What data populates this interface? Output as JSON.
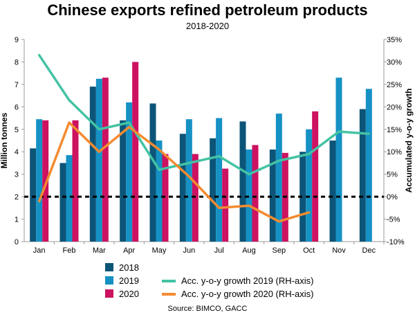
{
  "colors": {
    "bar_2018": "#0d5578",
    "bar_2019": "#1591c4",
    "bar_2020": "#cc1260",
    "line_2019": "#43c3a3",
    "line_2020": "#f38b31",
    "zero_line": "#000000",
    "axis": "#999999"
  },
  "chart_data": {
    "type": "bar",
    "title": "Chinese exports refined petroleum products",
    "subtitle": "2018-2020",
    "ylabel": "Million tonnes",
    "ylabel_right": "Accumulated y-o-y growth",
    "source": "Source: BIMCO, GACC",
    "categories": [
      "Jan",
      "Feb",
      "Mar",
      "Apr",
      "May",
      "Jun",
      "Jul",
      "Aug",
      "Sep",
      "Oct",
      "Nov",
      "Dec"
    ],
    "ylim": [
      0,
      9
    ],
    "yticks": [
      "0",
      "1",
      "2",
      "3",
      "4",
      "5",
      "6",
      "7",
      "8",
      "9"
    ],
    "y2lim": [
      -10,
      35
    ],
    "y2ticks": [
      "-10%",
      "-5%",
      "0%",
      "5%",
      "10%",
      "15%",
      "20%",
      "25%",
      "30%",
      "35%"
    ],
    "series": [
      {
        "name": "2018",
        "kind": "bar",
        "values": [
          4.15,
          3.5,
          6.9,
          5.4,
          6.15,
          4.8,
          4.6,
          5.35,
          4.1,
          4.0,
          4.5,
          5.9
        ]
      },
      {
        "name": "2019",
        "kind": "bar",
        "values": [
          5.45,
          3.85,
          7.25,
          6.2,
          4.5,
          5.45,
          5.5,
          4.1,
          5.7,
          5.0,
          7.3,
          6.8
        ]
      },
      {
        "name": "2020",
        "kind": "bar",
        "values": [
          5.4,
          5.4,
          7.3,
          8.0,
          3.9,
          3.9,
          3.25,
          4.3,
          3.95,
          5.8,
          null,
          null
        ]
      },
      {
        "name": "Acc. y-o-y growth 2019 (RH-axis)",
        "kind": "line",
        "values": [
          31.5,
          21.5,
          15.0,
          16.5,
          6.0,
          7.5,
          9.0,
          5.0,
          8.0,
          9.5,
          14.5,
          14.0
        ]
      },
      {
        "name": "Acc. y-o-y growth 2020 (RH-axis)",
        "kind": "line",
        "values": [
          -1.0,
          16.5,
          10.0,
          15.5,
          10.5,
          4.5,
          -2.5,
          -2.0,
          -5.5,
          -3.5,
          null,
          null
        ]
      }
    ]
  }
}
